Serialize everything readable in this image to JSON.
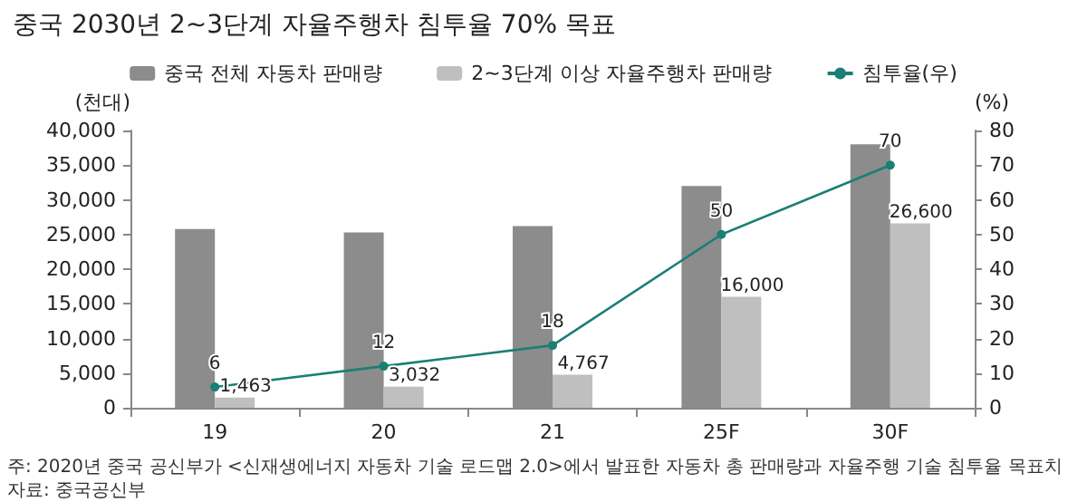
{
  "chart_data": {
    "type": "bar",
    "title": "중국 2030년 2~3단계 자율주행차 침투율 70% 목표",
    "categories": [
      "19",
      "20",
      "21",
      "25F",
      "30F"
    ],
    "ylabel": "(천대)",
    "y2label": "(%)",
    "series": [
      {
        "name": "중국 전체 자동차 판매량",
        "color": "#8c8c8c",
        "values": [
          25800,
          25300,
          26200,
          32000,
          38000
        ]
      },
      {
        "name": "2~3단계 이상 자율주행차 판매량",
        "color": "#bfbfbf",
        "values": [
          1463,
          3032,
          4767,
          16000,
          26600
        ],
        "value_labels": [
          "1,463",
          "3,032",
          "4,767",
          "16,000",
          "26,600"
        ]
      },
      {
        "name": "침투율(우)",
        "type": "line",
        "axis": "y2",
        "color": "#1a7f74",
        "marker": "circle",
        "values": [
          6,
          12,
          18,
          50,
          70
        ],
        "value_labels": [
          "6",
          "12",
          "18",
          "50",
          "70"
        ]
      }
    ],
    "ylim": [
      0,
      40000
    ],
    "yticks": [
      {
        "value": 0,
        "label": "0"
      },
      {
        "value": 5000,
        "label": "5,000"
      },
      {
        "value": 10000,
        "label": "10,000"
      },
      {
        "value": 15000,
        "label": "15,000"
      },
      {
        "value": 20000,
        "label": "20,000"
      },
      {
        "value": 25000,
        "label": "25,000"
      },
      {
        "value": 30000,
        "label": "30,000"
      },
      {
        "value": 35000,
        "label": "35,000"
      },
      {
        "value": 40000,
        "label": "40,000"
      }
    ],
    "y2lim": [
      0,
      80
    ],
    "y2ticks": [
      0,
      10,
      20,
      30,
      40,
      50,
      60,
      70,
      80
    ],
    "grid": false,
    "legend": "top",
    "annotations": [
      "주: 2020년 중국 공신부가 <신재생에너지 자동차 기술 로드맵 2.0>에서 발표한 자동차 총 판매량과 자율주행 기술 침투율 목표치",
      "자료: 중국공신부"
    ]
  }
}
